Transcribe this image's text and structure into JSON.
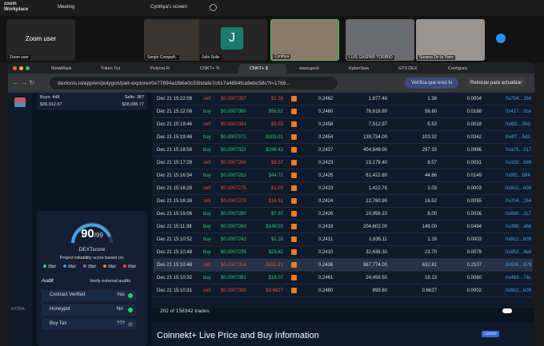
{
  "zoom": {
    "brand": [
      "zoom",
      "Workplace"
    ],
    "meeting": "Meeting",
    "screen_title": "Cynthya's screen",
    "participants": [
      {
        "big": "Zoom user",
        "label": "Zoom user"
      },
      {
        "label": "Sergio Compañ.."
      },
      {
        "initial": "J",
        "label": "Julio Solis"
      },
      {
        "label": "Cynthya"
      },
      {
        "label": "LUIS GASPAR TORIBIO"
      },
      {
        "label": "Susana De la Torre"
      }
    ]
  },
  "browser": {
    "tabs": [
      "MetaMask",
      "Token Tra",
      "Polycat Fi",
      "CNKT+ Tr",
      "CNKT+ $",
      "www.geck",
      "KyberSwa",
      "GT3 DEX",
      "Configura"
    ],
    "url": "dextools.io/app/en/polygon/pair-explorer/0x77894a1fb6e0c33bdafe7c617a4894fca9ebc58c?t=1766...",
    "verify": "Verifica que eres tú",
    "restart": "Reiniciar para actualizar"
  },
  "side": {
    "extra": "EXTRA"
  },
  "panel": {
    "buys": "Buys: 448",
    "sells": "Sells: 387",
    "buys_value": "$36,912.67",
    "sells_value": "$38,088.77",
    "score": "90",
    "score_max": "/99",
    "score_name": "DEXTscore",
    "score_note": "Project reliability score based on:",
    "legend": [
      "99pt",
      "99pt",
      "99pt",
      "99pt",
      "60pt"
    ],
    "audit": "Audit",
    "verify_audits": "Verify external audits",
    "checks": [
      [
        "Contract Verified",
        "Yes"
      ],
      [
        "Honeypot",
        "No"
      ],
      [
        "Buy Tax",
        "???"
      ]
    ]
  },
  "table": {
    "rows": [
      [
        "Dec 21 15:22:08",
        "sell",
        "$0.0007397",
        "$1.38",
        "0,2462",
        "1,877.48",
        "1.38",
        "0.0004",
        "0x704…164"
      ],
      [
        "Dec 21 15:22:08",
        "buy",
        "$0.0007390",
        "$56.62",
        "0,2460",
        "76,618.80",
        "56.80",
        "0.0188",
        "0x417…0ce"
      ],
      [
        "Dec 21 15:19:46",
        "sell",
        "$0.0007384",
        "$5.53",
        "0,2458",
        "7,512.97",
        "5.53",
        "0.0018",
        "0x6f2…00d"
      ],
      [
        "Dec 21 15:19:46",
        "buy",
        "$0.0007371",
        "$103.01",
        "0,2454",
        "139,734.00",
        "103.32",
        "0.0342",
        "0x4f7…5d3"
      ],
      [
        "Dec 21 15:18:58",
        "buy",
        "$0.0007322",
        "$296.43",
        "0,2437",
        "404,849.00",
        "297.33",
        "0.0986",
        "0xa79…017"
      ],
      [
        "Dec 21 15:17:28",
        "sell",
        "$0.0007286",
        "$9.57",
        "0,2423",
        "13,179.40",
        "9.57",
        "0.0031",
        "0x328…b69"
      ],
      [
        "Dec 21 15:16:34",
        "buy",
        "$0.0007282",
        "$44.72",
        "0,2425",
        "61,422.80",
        "44.66",
        "0.0149",
        "0x9f2…b84"
      ],
      [
        "Dec 21 15:16:28",
        "sell",
        "$0.0007276",
        "$1.03",
        "0,2423",
        "1,422.78",
        "1.03",
        "0.0003",
        "0x9c2…b09"
      ],
      [
        "Dec 21 15:16:28",
        "sell",
        "$0.0007278",
        "$16.51",
        "0,2424",
        "22,760.90",
        "16.52",
        "0.0055",
        "0x704…164"
      ],
      [
        "Dec 21 15:15:06",
        "buy",
        "$0.0007280",
        "$7.97",
        "0,2426",
        "10,956.10",
        "8.00",
        "0.0026",
        "0x6b0…2c7"
      ],
      [
        "Dec 21 15:11:38",
        "buy",
        "$0.0007260",
        "$148.55",
        "0,2418",
        "204,602.00",
        "149.00",
        "0.0494",
        "0x398…a6b"
      ],
      [
        "Dec 21 15:10:52",
        "buy",
        "$0.0007242",
        "$1.18",
        "0,2411",
        "1,635.11",
        "1.19",
        "0.0003",
        "0x9c2…b09"
      ],
      [
        "Dec 21 15:10:48",
        "buy",
        "$0.0007239",
        "$23.62",
        "0,2410",
        "32,638.30",
        "23.70",
        "0.0078",
        "0x952…8ed"
      ],
      [
        "Dec 21 15:10:48",
        "sell",
        "$0.0007314",
        "$632.81",
        "0,2436",
        "867,774.00",
        "632.81",
        "0.2107",
        "0x606…879"
      ],
      [
        "Dec 21 15:10:32",
        "buy",
        "$0.0007391",
        "$18.07",
        "0,2461",
        "24,459.50",
        "18.13",
        "0.0060",
        "0x463…74c"
      ],
      [
        "Dec 21 15:10:31",
        "sell",
        "$0.0007388",
        "$0.6627",
        "0,2460",
        "899.60",
        "0.6627",
        "0.0002",
        "0x9c2…b09"
      ]
    ],
    "footer": "202 of 158342 trades"
  },
  "section_title": "Coinnekt+ Live Price and Buy Information",
  "update": "Update"
}
